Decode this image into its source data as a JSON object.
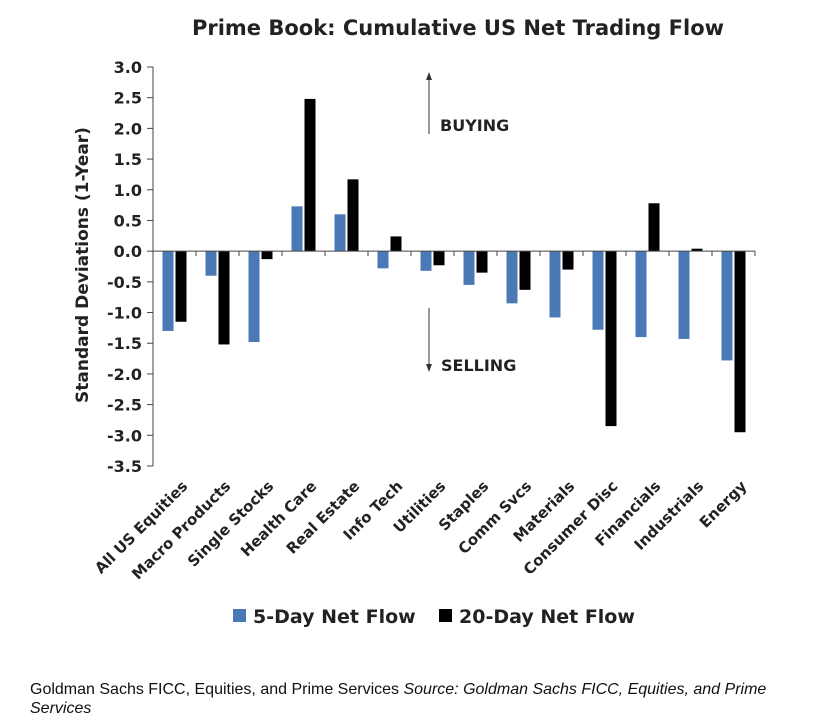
{
  "chart_data": {
    "type": "bar",
    "title": "Prime Book: Cumulative US Net Trading Flow",
    "ylabel": "Standard Deviations (1-Year)",
    "xlabel": "",
    "ylim": [
      -3.5,
      3.0
    ],
    "yticks": [
      "3.0",
      "2.5",
      "2.0",
      "1.5",
      "1.0",
      "0.5",
      "0.0",
      "-0.5",
      "-1.0",
      "-1.5",
      "-2.0",
      "-2.5",
      "-3.0",
      "-3.5"
    ],
    "categories": [
      "All US Equities",
      "Macro Products",
      "Single Stocks",
      "Health Care",
      "Real Estate",
      "Info Tech",
      "Utilities",
      "Staples",
      "Comm Svcs",
      "Materials",
      "Consumer Disc",
      "Financials",
      "Industrials",
      "Energy"
    ],
    "series": [
      {
        "name": "5-Day Net Flow",
        "color": "#4a79b5",
        "values": [
          -1.3,
          -0.4,
          -1.48,
          0.73,
          0.6,
          -0.28,
          -0.32,
          -0.55,
          -0.85,
          -1.08,
          -1.28,
          -1.4,
          -1.43,
          -1.78
        ]
      },
      {
        "name": "20-Day Net Flow",
        "color": "#000000",
        "values": [
          -1.15,
          -1.52,
          -0.13,
          2.48,
          1.17,
          0.24,
          -0.23,
          -0.35,
          -0.63,
          -0.3,
          -2.85,
          0.78,
          0.04,
          -2.95
        ]
      }
    ],
    "annotations": {
      "buying": "BUYING",
      "selling": "SELLING"
    },
    "grid": false,
    "legend_position": "bottom"
  },
  "footer": {
    "text": "Goldman Sachs FICC, Equities, and Prime Services ",
    "source": "Source: Goldman Sachs FICC, Equities, and Prime Services"
  }
}
